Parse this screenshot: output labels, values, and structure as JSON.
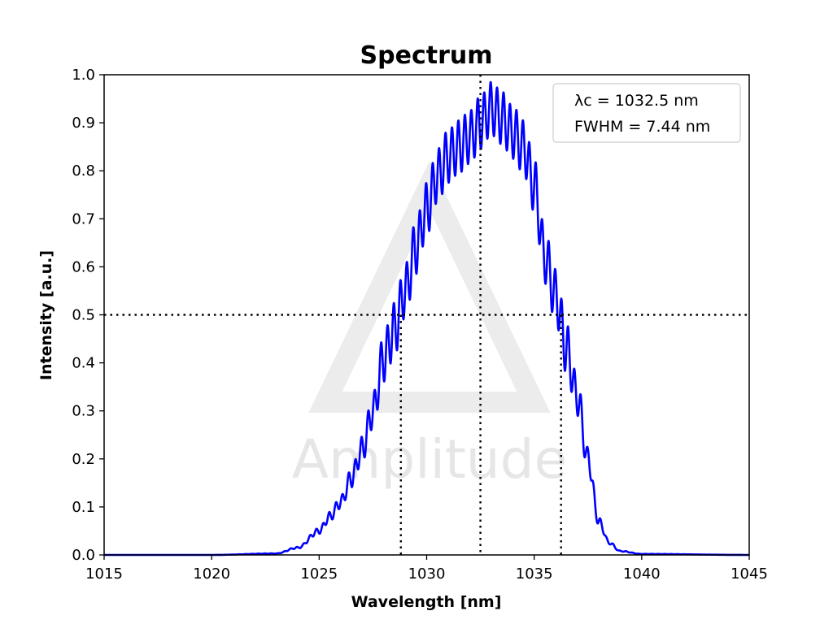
{
  "chart_data": {
    "type": "line",
    "title": "Spectrum",
    "xlabel": "Wavelength [nm]",
    "ylabel": "Intensity [a.u.]",
    "xlim": [
      1015,
      1045
    ],
    "ylim": [
      0.0,
      1.0
    ],
    "xticks": [
      1015,
      1020,
      1025,
      1030,
      1035,
      1040,
      1045
    ],
    "yticks": [
      0.0,
      0.1,
      0.2,
      0.3,
      0.4,
      0.5,
      0.6,
      0.7,
      0.8,
      0.9,
      1.0
    ],
    "xtick_labels": [
      "1015",
      "1020",
      "1025",
      "1030",
      "1035",
      "1040",
      "1045"
    ],
    "ytick_labels": [
      "0.0",
      "0.1",
      "0.2",
      "0.3",
      "0.4",
      "0.5",
      "0.6",
      "0.7",
      "0.8",
      "0.9",
      "1.0"
    ],
    "grid": false,
    "series": [
      {
        "color": "#0000ff",
        "x": [
          1015,
          1020,
          1023,
          1024,
          1025,
          1025.5,
          1026,
          1026.5,
          1027,
          1027.5,
          1028,
          1028.5,
          1029,
          1029.5,
          1030,
          1030.5,
          1031,
          1031.5,
          1032,
          1032.5,
          1033,
          1033.5,
          1034,
          1034.5,
          1035,
          1035.5,
          1036,
          1036.5,
          1037,
          1037.5,
          1038,
          1038.5,
          1039,
          1040,
          1045
        ],
        "y": [
          0.0,
          0.0,
          0.003,
          0.015,
          0.05,
          0.08,
          0.11,
          0.16,
          0.22,
          0.3,
          0.41,
          0.47,
          0.55,
          0.64,
          0.72,
          0.79,
          0.83,
          0.85,
          0.87,
          0.9,
          0.93,
          0.91,
          0.88,
          0.85,
          0.77,
          0.62,
          0.54,
          0.43,
          0.33,
          0.2,
          0.07,
          0.025,
          0.008,
          0.002,
          0.0
        ]
      }
    ],
    "reference_lines": {
      "horizontal_y": 0.5,
      "vertical_x": [
        1028.8,
        1032.5,
        1036.25
      ]
    },
    "legend": {
      "placement": "top-right",
      "lines": [
        "λc = 1032.5 nm",
        "FWHM = 7.44 nm"
      ]
    },
    "watermark": "Amplitude"
  }
}
